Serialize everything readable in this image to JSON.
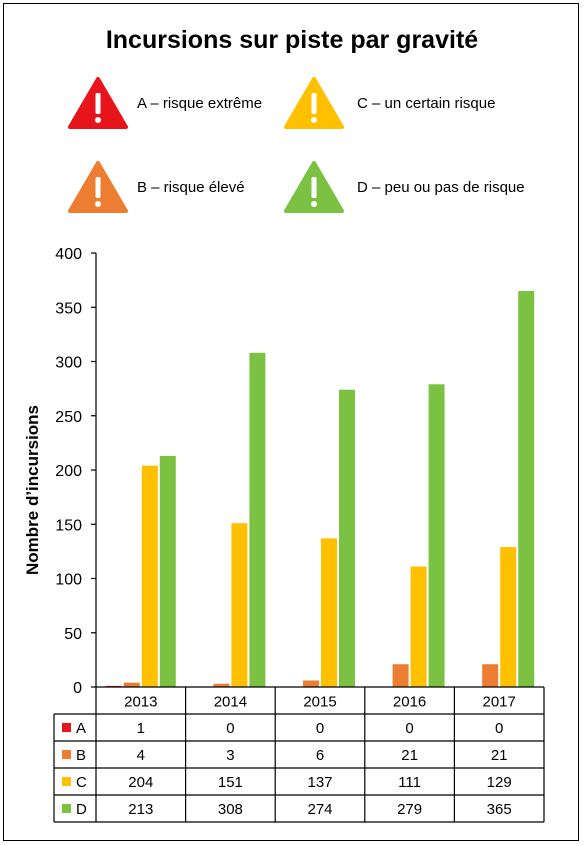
{
  "chart_data": {
    "type": "bar",
    "title": "Incursions sur piste par gravité",
    "ylabel": "Nombre d’incursions",
    "xlabel": "",
    "ylim": [
      0,
      400
    ],
    "yticks": [
      0,
      50,
      100,
      150,
      200,
      250,
      300,
      350,
      400
    ],
    "categories": [
      "2013",
      "2014",
      "2015",
      "2016",
      "2017"
    ],
    "series": [
      {
        "name": "A",
        "color": "#e8141b",
        "values": [
          1,
          0,
          0,
          0,
          0
        ]
      },
      {
        "name": "B",
        "color": "#ed7d31",
        "values": [
          4,
          3,
          6,
          21,
          21
        ]
      },
      {
        "name": "C",
        "color": "#ffc000",
        "values": [
          204,
          151,
          137,
          111,
          129
        ]
      },
      {
        "name": "D",
        "color": "#7cc242",
        "values": [
          213,
          308,
          274,
          279,
          365
        ]
      }
    ],
    "legend": [
      {
        "icon": "warning-triangle-icon",
        "color": "#e8141b",
        "label": "A – risque extrême"
      },
      {
        "icon": "warning-triangle-icon",
        "color": "#ffc000",
        "label": "C – un certain risque"
      },
      {
        "icon": "warning-triangle-icon",
        "color": "#ed7d31",
        "label": "B – risque élevé"
      },
      {
        "icon": "warning-triangle-icon",
        "color": "#7cc242",
        "label": "D – peu ou pas de risque"
      }
    ],
    "legend_placement": "top",
    "grid": false,
    "data_table": true
  }
}
